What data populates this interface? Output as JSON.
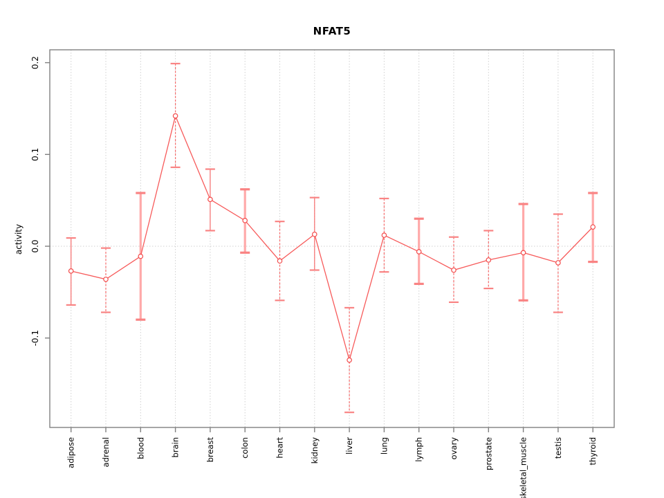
{
  "chart_data": {
    "type": "line",
    "title": "NFAT5",
    "xlabel": "",
    "ylabel": "activity",
    "categories": [
      "adipose",
      "adrenal",
      "blood",
      "brain",
      "breast",
      "colon",
      "heart",
      "kidney",
      "liver",
      "lung",
      "lymph",
      "ovary",
      "prostate",
      "skeletal_muscle",
      "testis",
      "thyroid"
    ],
    "series": [
      {
        "name": "NFAT5 activity",
        "values": [
          -0.027,
          -0.036,
          -0.011,
          0.142,
          0.051,
          0.028,
          -0.016,
          0.013,
          -0.124,
          0.012,
          -0.006,
          -0.026,
          -0.015,
          -0.007,
          -0.018,
          0.021
        ],
        "error_low": [
          -0.064,
          -0.072,
          -0.08,
          0.086,
          0.017,
          -0.007,
          -0.059,
          -0.026,
          -0.181,
          -0.028,
          -0.041,
          -0.061,
          -0.046,
          -0.059,
          -0.072,
          -0.017
        ],
        "error_high": [
          0.009,
          -0.002,
          0.058,
          0.199,
          0.084,
          0.062,
          0.027,
          0.053,
          -0.067,
          0.052,
          0.03,
          0.01,
          0.017,
          0.046,
          0.035,
          0.058
        ],
        "error_bar_styles": [
          "thin",
          "dashed",
          "thick",
          "dashed",
          "thin",
          "thick",
          "dashed",
          "thin",
          "dashed",
          "dashed",
          "thick",
          "dashed",
          "dashed",
          "thick",
          "dashed",
          "thick"
        ]
      }
    ],
    "ytick_labels": [
      "-0.1",
      "0.0",
      "0.1",
      "0.2"
    ],
    "ytick_values": [
      -0.1,
      0.0,
      0.1,
      0.2
    ],
    "ylim": [
      -0.198,
      0.215
    ],
    "grid": {
      "vertical_at_categories": true,
      "horizontal_at_zero": true
    },
    "legend": "none",
    "marker": "open-circle",
    "colors": {
      "series_line": "#F75A5A",
      "point_ring": "#F34A4A",
      "error_bar": "#F66A6A",
      "error_bar_thick": "#FFA9A9",
      "error_cap": "#F98383",
      "grid": "#CFCFCF",
      "axis_frame": "#808080",
      "text": "#000000",
      "background": "#FFFFFF"
    }
  }
}
